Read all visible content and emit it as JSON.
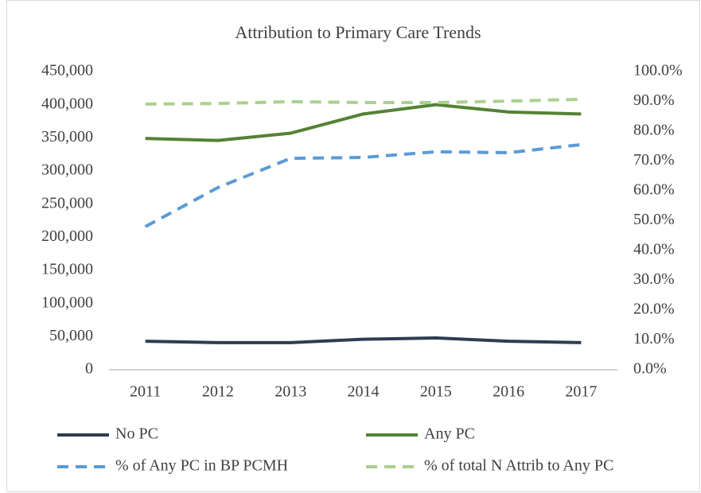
{
  "chart_data": {
    "type": "line",
    "title": "Attribution to Primary Care Trends",
    "categories": [
      "2011",
      "2012",
      "2013",
      "2014",
      "2015",
      "2016",
      "2017"
    ],
    "series": [
      {
        "name": "No PC",
        "color": "#2e3d50",
        "dash": false,
        "values": [
          43000,
          41000,
          41000,
          46000,
          48000,
          43000,
          41000
        ]
      },
      {
        "name": "Any PC",
        "color": "#548235",
        "dash": false,
        "values": [
          349000,
          346000,
          357000,
          386000,
          400000,
          389000,
          386000
        ]
      },
      {
        "name": "% of Any PC in BP PCMH",
        "color": "#5b9bd5",
        "dash": true,
        "axis": "y2",
        "values": [
          48.0,
          61.1,
          70.9,
          71.2,
          73.1,
          72.8,
          75.5
        ]
      },
      {
        "name": "% of total N Attrib to Any PC",
        "color": "#a9d18e",
        "dash": true,
        "axis": "y2",
        "values": [
          89.1,
          89.3,
          89.9,
          89.6,
          89.6,
          90.1,
          90.7
        ]
      }
    ],
    "ylim": [
      0,
      450000
    ],
    "yticks": [
      0,
      {
        "value": 50000,
        "label": "50,000"
      },
      {
        "value": 100000,
        "label": "100,000"
      },
      {
        "value": 150000,
        "label": "150,000"
      },
      {
        "value": 200000,
        "label": "200,000"
      },
      {
        "value": 250000,
        "label": "250,000"
      },
      {
        "value": 300000,
        "label": "300,000"
      },
      {
        "value": 350000,
        "label": "350,000"
      },
      {
        "value": 400000,
        "label": "400,000"
      },
      {
        "value": 450000,
        "label": "450,000"
      }
    ],
    "y2lim": [
      0,
      100
    ],
    "y2ticks": [
      {
        "value": 0,
        "label": "0.0%"
      },
      {
        "value": 10,
        "label": "10.0%"
      },
      {
        "value": 20,
        "label": "20.0%"
      },
      {
        "value": 30,
        "label": "30.0%"
      },
      {
        "value": 40,
        "label": "40.0%"
      },
      {
        "value": 50,
        "label": "50.0%"
      },
      {
        "value": 60,
        "label": "60.0%"
      },
      {
        "value": 70,
        "label": "70.0%"
      },
      {
        "value": 80,
        "label": "80.0%"
      },
      {
        "value": 90,
        "label": "90.0%"
      },
      {
        "value": 100,
        "label": "100.0%"
      }
    ],
    "grid": false
  }
}
